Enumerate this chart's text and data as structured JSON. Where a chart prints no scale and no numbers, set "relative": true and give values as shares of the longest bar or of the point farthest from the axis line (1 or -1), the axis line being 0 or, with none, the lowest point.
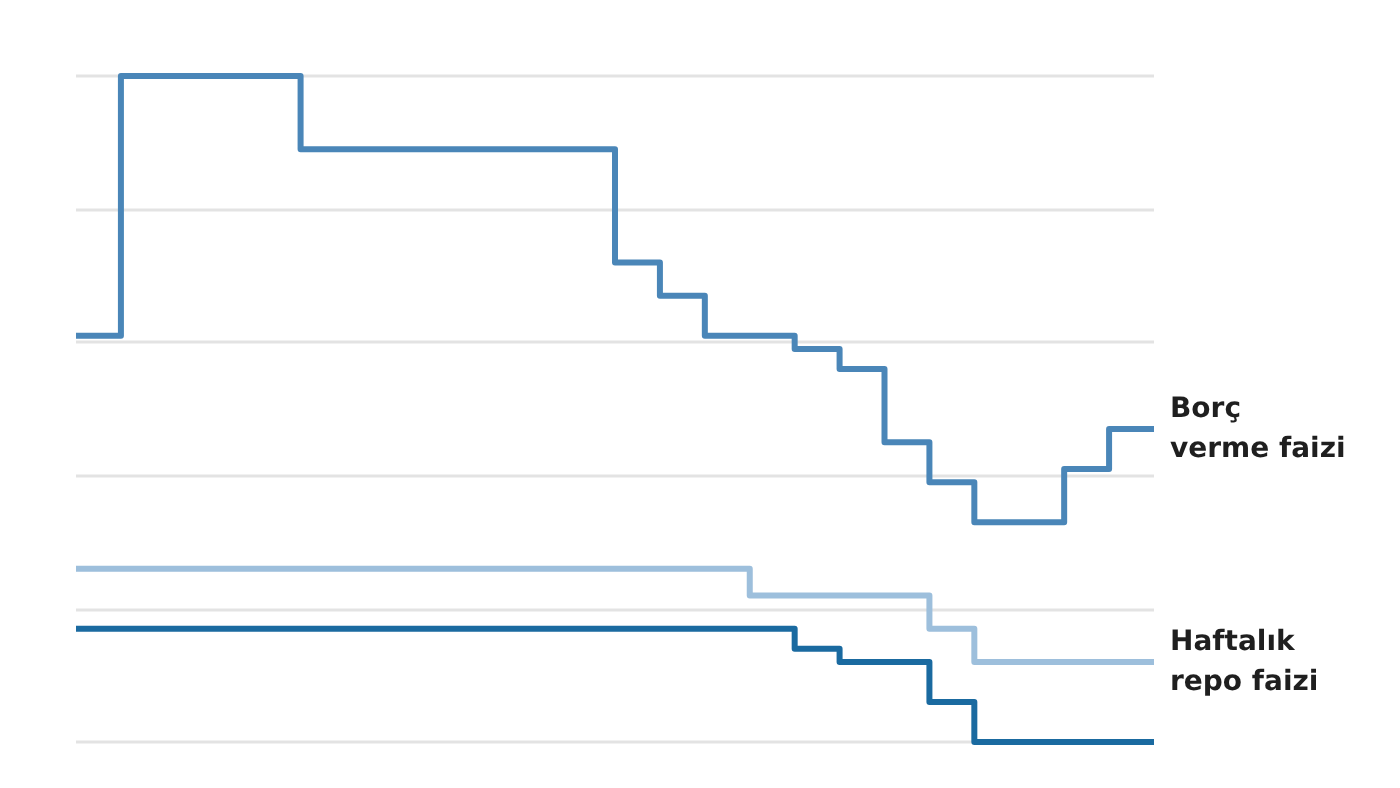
{
  "chart_data": {
    "type": "step",
    "relative": true,
    "grid": "y",
    "legend": false,
    "marker": "none",
    "line_style": "solid",
    "categories": [
      null,
      null,
      null,
      null,
      null,
      null,
      null,
      null,
      null,
      null,
      null,
      null,
      null,
      null,
      null,
      null,
      null,
      null,
      null,
      null,
      null,
      null,
      null,
      null,
      null
    ],
    "series": [
      {
        "name": "Borç verme faizi",
        "color": "#4a86b8",
        "values": [
          0.61,
          1,
          1,
          1,
          1,
          0.89,
          0.89,
          0.89,
          0.89,
          0.89,
          0.89,
          0.89,
          0.72,
          0.67,
          0.61,
          0.61,
          0.59,
          0.56,
          0.45,
          0.39,
          0.33,
          0.33,
          0.41,
          0.47,
          0.47
        ]
      },
      {
        "name": "Haftalık repo faizi",
        "color": "#9dbfdc",
        "values": [
          0.26,
          0.26,
          0.26,
          0.26,
          0.26,
          0.26,
          0.26,
          0.26,
          0.26,
          0.26,
          0.26,
          0.26,
          0.26,
          0.26,
          0.26,
          0.22,
          0.22,
          0.22,
          0.22,
          0.17,
          0.12,
          0.12,
          0.12,
          0.12,
          0.12
        ]
      },
      {
        "color": "#1a6aa0",
        "values": [
          0.17,
          0.17,
          0.17,
          0.17,
          0.17,
          0.17,
          0.17,
          0.17,
          0.17,
          0.17,
          0.17,
          0.17,
          0.17,
          0.17,
          0.17,
          0.17,
          0.14,
          0.12,
          0.12,
          0.06,
          0,
          0,
          0,
          0,
          0
        ]
      }
    ]
  }
}
